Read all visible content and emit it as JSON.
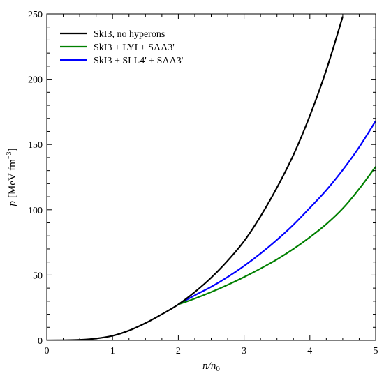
{
  "chart_data": {
    "type": "line",
    "xlabel": {
      "main": "n/n",
      "sub": "0"
    },
    "ylabel": {
      "main": "p",
      "unit": "[MeV fm",
      "sup": "−3",
      "close": "]"
    },
    "xlim": [
      0,
      5
    ],
    "ylim": [
      0,
      250
    ],
    "xticks": [
      "0",
      "1",
      "2",
      "3",
      "4",
      "5"
    ],
    "yticks": [
      "0",
      "50",
      "100",
      "150",
      "200",
      "250"
    ],
    "grid": false,
    "legend_position": "top-left",
    "series": [
      {
        "name": "SkI3, no hyperons",
        "color": "#000000",
        "x": [
          0.0,
          0.25,
          0.5,
          0.75,
          1.0,
          1.25,
          1.5,
          1.75,
          2.0,
          2.25,
          2.5,
          2.75,
          3.0,
          3.25,
          3.5,
          3.75,
          4.0,
          4.25,
          4.5
        ],
        "y": [
          0,
          0.1,
          0.4,
          1.4,
          3.5,
          7.5,
          13.2,
          20.0,
          27.5,
          37.0,
          48.0,
          61.0,
          76.0,
          95.0,
          117.0,
          142.0,
          172.0,
          207.0,
          248.0
        ]
      },
      {
        "name": "SkI3 + LYI + SΛΛ3'",
        "color": "#008000",
        "x": [
          2.0,
          2.25,
          2.5,
          2.75,
          3.0,
          3.25,
          3.5,
          3.75,
          4.0,
          4.25,
          4.5,
          4.75,
          5.0
        ],
        "y": [
          27.5,
          32.0,
          37.0,
          42.5,
          48.5,
          55.0,
          62.0,
          70.0,
          79.0,
          89.0,
          101.0,
          116.0,
          133.0
        ]
      },
      {
        "name": "SkI3 + SLL4' + SΛΛ3'",
        "color": "#0000ff",
        "x": [
          2.0,
          2.25,
          2.5,
          2.75,
          3.0,
          3.25,
          3.5,
          3.75,
          4.0,
          4.25,
          4.5,
          4.75,
          5.0
        ],
        "y": [
          27.5,
          34.5,
          41.0,
          48.5,
          57.0,
          66.5,
          77.0,
          88.5,
          101.5,
          115.0,
          130.5,
          148.0,
          168.0
        ]
      }
    ]
  }
}
